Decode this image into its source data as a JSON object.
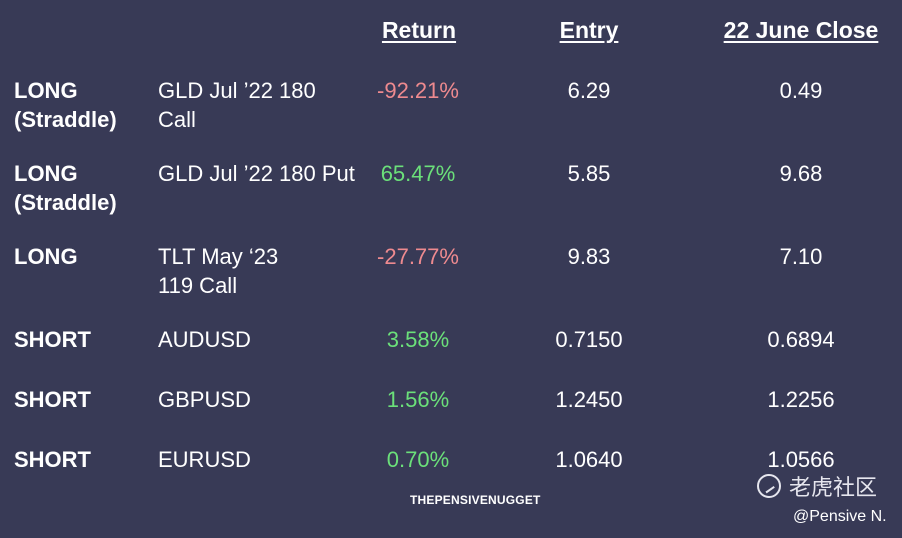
{
  "headers": {
    "return": "Return",
    "entry": "Entry",
    "close": "22 June Close"
  },
  "rows": [
    {
      "position": "LONG (Straddle)",
      "instrument": "GLD Jul ’22 180 Call",
      "return": "-92.21%",
      "return_sign": "negative",
      "entry": "6.29",
      "close": "0.49"
    },
    {
      "position": "LONG (Straddle)",
      "instrument": "GLD Jul ’22 180 Put",
      "return": "65.47%",
      "return_sign": "positive",
      "entry": "5.85",
      "close": "9.68"
    },
    {
      "position": "LONG",
      "instrument": "TLT May ‘23 119 Call",
      "return": "-27.77%",
      "return_sign": "negative",
      "entry": "9.83",
      "close": "7.10"
    },
    {
      "position": "SHORT",
      "instrument": "AUDUSD",
      "return": "3.58%",
      "return_sign": "positive",
      "entry": "0.7150",
      "close": "0.6894"
    },
    {
      "position": "SHORT",
      "instrument": "GBPUSD",
      "return": "1.56%",
      "return_sign": "positive",
      "entry": "1.2450",
      "close": "1.2256"
    },
    {
      "position": "SHORT",
      "instrument": "EURUSD",
      "return": "0.70%",
      "return_sign": "positive",
      "entry": "1.0640",
      "close": "1.0566"
    }
  ],
  "footer": {
    "brand": "THEPENSIVENUGGET",
    "watermark": "老虎社区",
    "handle": "@Pensive N."
  },
  "colors": {
    "background": "#383a56",
    "negative": "#ee8a8f",
    "positive": "#6be07a"
  }
}
